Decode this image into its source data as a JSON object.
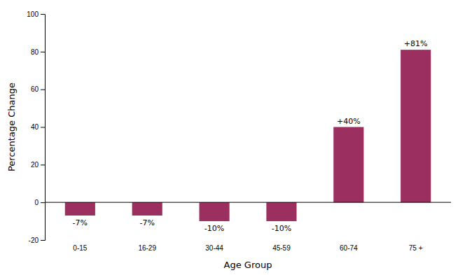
{
  "chart_data": {
    "type": "bar",
    "categories": [
      "0-15",
      "16-29",
      "30-44",
      "45-59",
      "60-74",
      "75 +"
    ],
    "values": [
      -7,
      -7,
      -10,
      -10,
      40,
      81
    ],
    "value_labels": [
      "-7%",
      "-7%",
      "-10%",
      "-10%",
      "+40%",
      "+81%"
    ],
    "data_labels": true,
    "color": "#9b3060",
    "xlabel": "Age Group",
    "ylabel": "Percentage Change",
    "ylim": [
      -20,
      100
    ],
    "yticks": [
      -20,
      0,
      20,
      40,
      60,
      80,
      100
    ],
    "grid": false
  }
}
